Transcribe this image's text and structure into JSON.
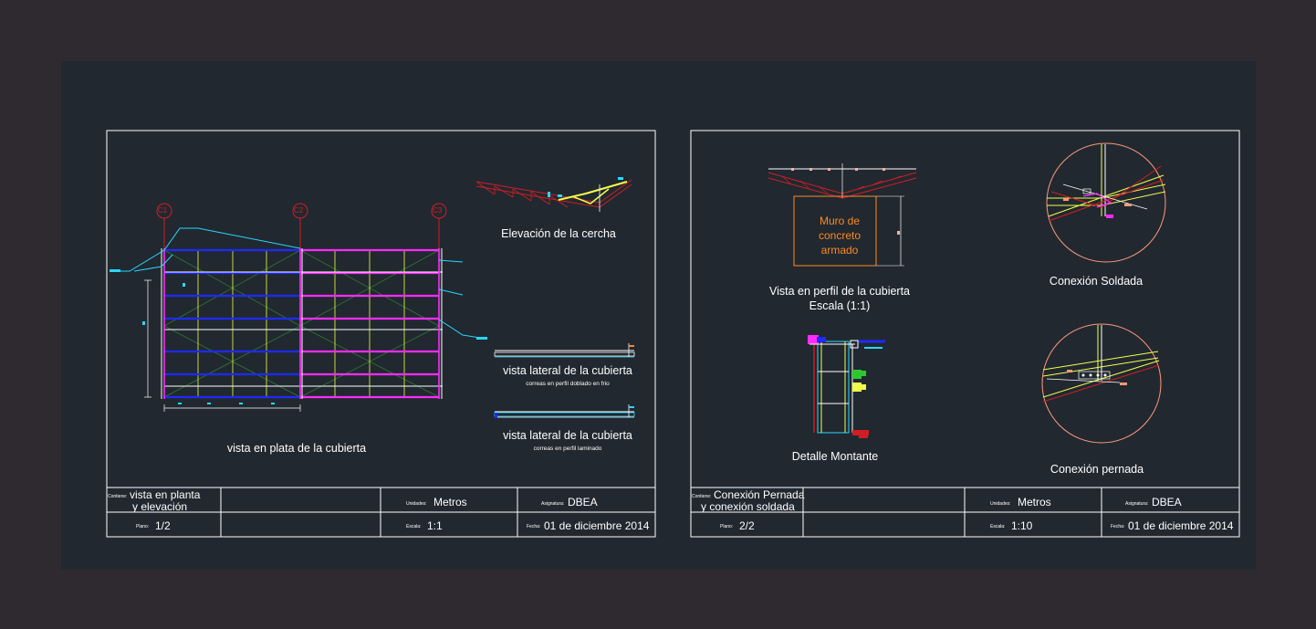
{
  "sheet1": {
    "grid_labels": [
      "C1",
      "C2",
      "C3"
    ],
    "truss_title": "Elevación de la cercha",
    "plan_title": "vista en plata de la cubierta",
    "side1_title": "vista lateral de la cubierta",
    "side1_sub": "correas en perfil doblado en frio",
    "side2_title": "vista lateral de la cubierta",
    "side2_sub": "correas en perfil laminado",
    "titleblock": {
      "contiene_key": "Contiene:",
      "contiene_l1": "vista en planta",
      "contiene_l2": "y elevación",
      "plano_key": "Plano:",
      "plano_val": "1/2",
      "unidades_key": "Unidades:",
      "unidades_val": "Metros",
      "escala_key": "Escala:",
      "escala_val": "1:1",
      "asignatura_key": "Asignatura:",
      "asignatura_val": "DBEA",
      "fecha_key": "Fecha:",
      "fecha_val": "01 de diciembre 2014"
    }
  },
  "sheet2": {
    "wall_l1": "Muro de",
    "wall_l2": "concreto",
    "wall_l3": "armado",
    "profile_title": "Vista en perfil de la cubierta",
    "profile_scale": "Escala (1:1)",
    "welded_title": "Conexión Soldada",
    "bolted_title": "Conexión pernada",
    "post_title": "Detalle Montante",
    "titleblock": {
      "contiene_key": "Contiene:",
      "contiene_l1": "Conexión Pernada",
      "contiene_l2": "y conexión soldada",
      "plano_key": "Plano:",
      "plano_val": "2/2",
      "unidades_key": "Unidades:",
      "unidades_val": "Metros",
      "escala_key": "Escala:",
      "escala_val": "1:10",
      "asignatura_key": "Asignatura:",
      "asignatura_val": "DBEA",
      "fecha_key": "Fecha:",
      "fecha_val": "01 de diciembre 2014"
    }
  },
  "colors": {
    "background": "#2e2a30",
    "model_space": "#212830",
    "frame": "#ffffff",
    "red": "#d01e24",
    "blue": "#1e2bff",
    "magenta": "#ff2bff",
    "yellow": "#f2ff4a",
    "green": "#2e7a2e",
    "cyan": "#2bd6ff",
    "orange": "#ff8a1e",
    "salmon": "#ff9a7a"
  }
}
